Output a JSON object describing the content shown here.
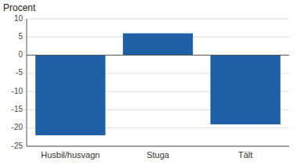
{
  "chart_data": {
    "type": "bar",
    "ylabel": "Procent",
    "categories": [
      "Husbil/husvagn",
      "Stuga",
      "Tält"
    ],
    "values": [
      -22,
      6,
      -19
    ],
    "color": "#1F5FA6",
    "ylim": [
      -25,
      10
    ],
    "yticks": [
      -25,
      -20,
      -15,
      -10,
      -5,
      0,
      5,
      10
    ],
    "grid": true
  }
}
